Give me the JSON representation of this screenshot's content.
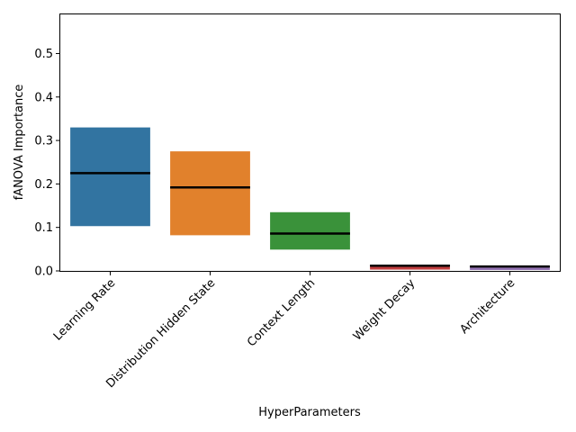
{
  "chart_data": {
    "type": "bar",
    "xlabel": "HyperParameters",
    "ylabel": "fANOVA Importance",
    "ylim": [
      0,
      0.59
    ],
    "yticks": [
      "0.0",
      "0.1",
      "0.2",
      "0.3",
      "0.4",
      "0.5"
    ],
    "grid": false,
    "legend": "none",
    "categories": [
      "Learning Rate",
      "Distribution Hidden State",
      "Context Length",
      "Weight Decay",
      "Architecture"
    ],
    "boxes": [
      {
        "q1": 0.103,
        "q3": 0.33,
        "median": 0.225,
        "color": "#3274a1"
      },
      {
        "q1": 0.082,
        "q3": 0.275,
        "median": 0.192,
        "color": "#e1812c"
      },
      {
        "q1": 0.049,
        "q3": 0.135,
        "median": 0.086,
        "color": "#3a923a"
      },
      {
        "q1": 0.003,
        "q3": 0.014,
        "median": 0.012,
        "color": "#c03d3e"
      },
      {
        "q1": 0.002,
        "q3": 0.011,
        "median": 0.01,
        "color": "#9372b2"
      }
    ]
  }
}
